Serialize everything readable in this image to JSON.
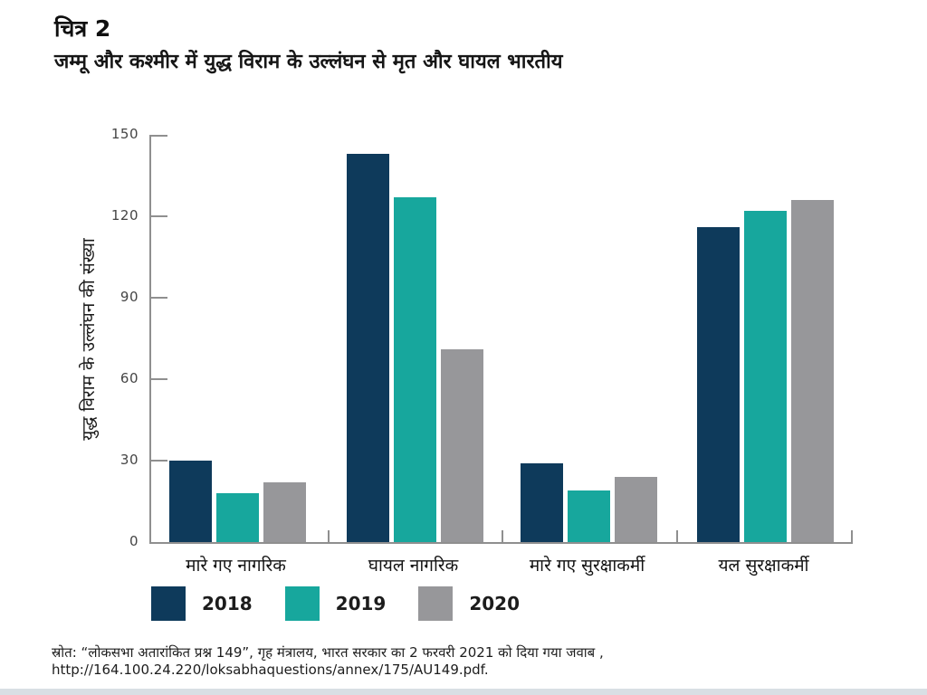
{
  "figure": {
    "label": "चित्र 2",
    "title": "जम्मू और कश्मीर में युद्ध विराम के उल्लंघन से मृत और घायल भारतीय"
  },
  "chart_data": {
    "type": "bar",
    "title": "जम्मू और कश्मीर में युद्ध विराम के उल्लंघन से मृत और घायल भारतीय",
    "categories": [
      "मारे गए नागरिक",
      "घायल नागरिक",
      "मारे गए सुरक्षाकर्मी",
      "यल सुरक्षाकर्मी"
    ],
    "series": [
      {
        "name": "2018",
        "color": "#0e3a5b",
        "values": [
          30,
          143,
          29,
          116
        ]
      },
      {
        "name": "2019",
        "color": "#17a79d",
        "values": [
          18,
          127,
          19,
          122
        ]
      },
      {
        "name": "2020",
        "color": "#97979a",
        "values": [
          22,
          71,
          24,
          126
        ]
      }
    ],
    "xlabel": "",
    "ylabel": "युद्ध विराम के उल्लंघन की संख्या",
    "ylim": [
      0,
      150
    ],
    "yticks": [
      0,
      30,
      60,
      90,
      120,
      150
    ],
    "grid": false,
    "legend_position": "bottom"
  },
  "source": {
    "line1": "स्रोत: “लोकसभा अतारांकित प्रश्न 149”, गृह मंत्रालय, भारत सरकार का 2 फरवरी 2021 को दिया गया जवाब ,",
    "line2": "http://164.100.24.220/loksabhaquestions/annex/175/AU149.pdf."
  }
}
